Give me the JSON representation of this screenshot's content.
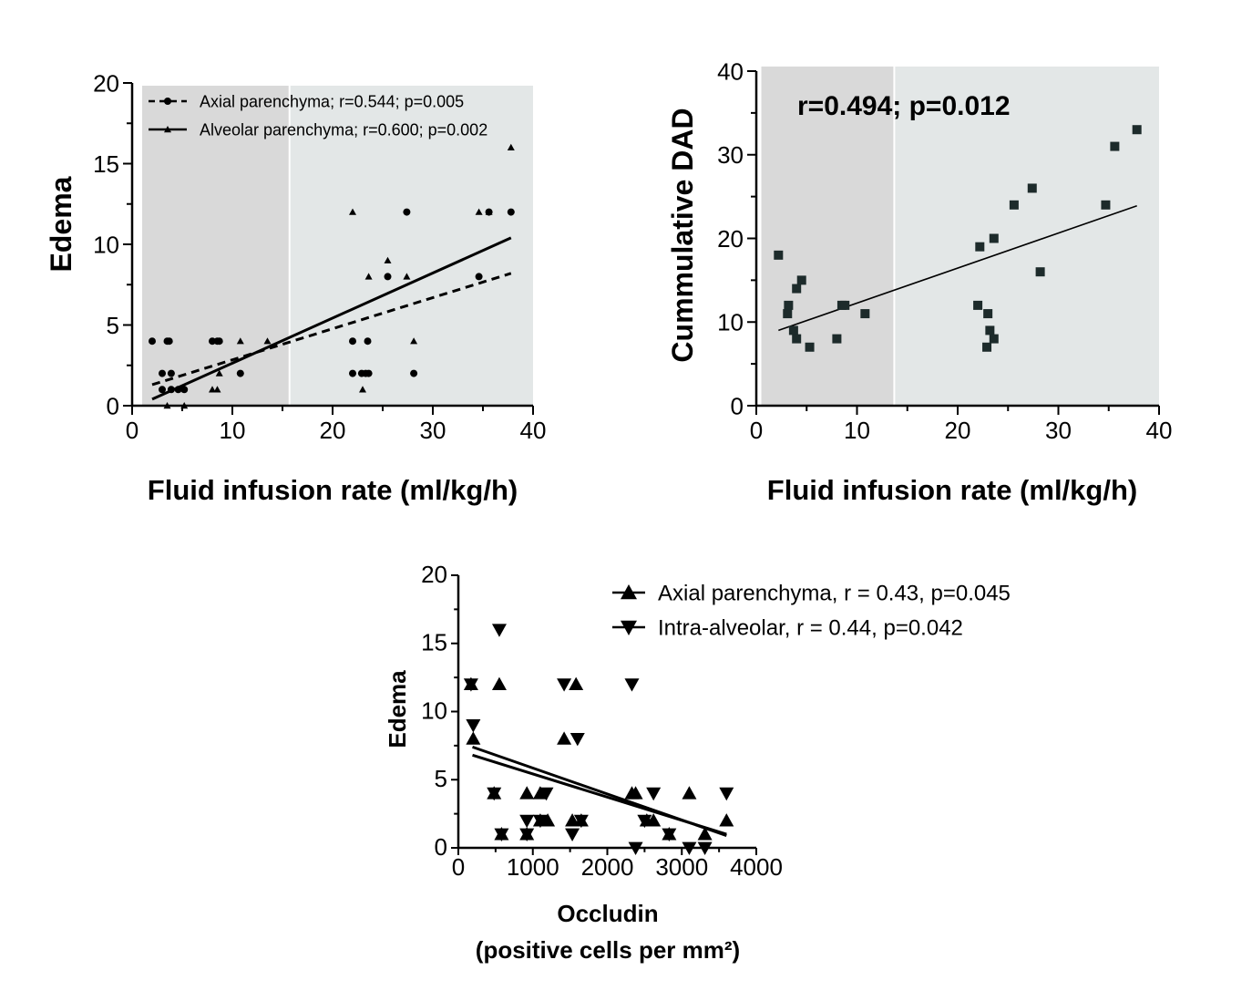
{
  "chart_data": [
    {
      "type": "scatter",
      "title": "",
      "xlabel": "Fluid infusion rate (ml/kg/h)",
      "ylabel": "Edema",
      "xlim": [
        0,
        40
      ],
      "ylim": [
        0,
        20
      ],
      "xticks": [
        "0",
        "10",
        "20",
        "30",
        "40"
      ],
      "yticks": [
        "0",
        "5",
        "10",
        "15",
        "20"
      ],
      "shaded_regions": [
        {
          "x": [
            1,
            15.7
          ],
          "color": "#d9d9d9"
        },
        {
          "x": [
            15.7,
            40
          ],
          "color": "#e3e7e7"
        }
      ],
      "legend": "top-left",
      "series": [
        {
          "name": "Axial parenchyma; r=0.544; p=0.005",
          "marker": "circle",
          "line": "dashed",
          "fit": [
            [
              2,
              1.3
            ],
            [
              37.8,
              8.2
            ]
          ],
          "points": [
            [
              2,
              4
            ],
            [
              3,
              2
            ],
            [
              3,
              1
            ],
            [
              3.5,
              4
            ],
            [
              3.7,
              4
            ],
            [
              3.9,
              2
            ],
            [
              3.9,
              1
            ],
            [
              4.6,
              1
            ],
            [
              5.2,
              1
            ],
            [
              8,
              4
            ],
            [
              8.5,
              4
            ],
            [
              8.7,
              4
            ],
            [
              10.8,
              2
            ],
            [
              22,
              4
            ],
            [
              22,
              2
            ],
            [
              22.9,
              2
            ],
            [
              23.3,
              2
            ],
            [
              23.5,
              4
            ],
            [
              23.6,
              2
            ],
            [
              25.5,
              8
            ],
            [
              27.4,
              12
            ],
            [
              28.1,
              2
            ],
            [
              34.6,
              8
            ],
            [
              35.6,
              12
            ],
            [
              37.8,
              12
            ]
          ]
        },
        {
          "name": "Alveolar parenchyma; r=0.600; p=0.002",
          "marker": "triangle",
          "line": "solid",
          "fit": [
            [
              2,
              0.4
            ],
            [
              37.8,
              10.4
            ]
          ],
          "points": [
            [
              3.5,
              0
            ],
            [
              5.2,
              0
            ],
            [
              8,
              1
            ],
            [
              8.5,
              1
            ],
            [
              8.7,
              2
            ],
            [
              10.8,
              4
            ],
            [
              13.5,
              4
            ],
            [
              22,
              12
            ],
            [
              23,
              1
            ],
            [
              23.6,
              8
            ],
            [
              25.5,
              9
            ],
            [
              27.4,
              8
            ],
            [
              28.1,
              4
            ],
            [
              34.6,
              12
            ],
            [
              35.6,
              12
            ],
            [
              37.8,
              16
            ]
          ]
        }
      ]
    },
    {
      "type": "scatter",
      "title": "",
      "annotation": "r=0.494; p=0.012",
      "xlabel": "Fluid infusion rate (ml/kg/h)",
      "ylabel": "Cummulative DAD",
      "xlim": [
        0,
        40
      ],
      "ylim": [
        0,
        40
      ],
      "xticks": [
        "0",
        "10",
        "20",
        "30",
        "40"
      ],
      "yticks": [
        "0",
        "10",
        "20",
        "30",
        "40"
      ],
      "shaded_regions": [
        {
          "x": [
            0.5,
            13.7
          ],
          "color": "#d9d9d9"
        },
        {
          "x": [
            13.7,
            40
          ],
          "color": "#e3e7e7"
        }
      ],
      "series": [
        {
          "marker": "square",
          "line": "solid",
          "fit": [
            [
              2.2,
              9
            ],
            [
              37.8,
              23.9
            ]
          ],
          "points": [
            [
              2.2,
              18
            ],
            [
              3.1,
              11
            ],
            [
              3.2,
              12
            ],
            [
              3.7,
              9
            ],
            [
              4,
              8
            ],
            [
              4,
              14
            ],
            [
              4.5,
              15
            ],
            [
              5.3,
              7
            ],
            [
              8,
              8
            ],
            [
              8.5,
              12
            ],
            [
              8.8,
              12
            ],
            [
              10.8,
              11
            ],
            [
              22,
              12
            ],
            [
              22.2,
              19
            ],
            [
              22.9,
              7
            ],
            [
              23,
              11
            ],
            [
              23.2,
              9
            ],
            [
              23.6,
              8
            ],
            [
              23.6,
              20
            ],
            [
              25.6,
              24
            ],
            [
              27.4,
              26
            ],
            [
              28.2,
              16
            ],
            [
              34.7,
              24
            ],
            [
              35.6,
              31
            ],
            [
              37.8,
              33
            ]
          ]
        }
      ]
    },
    {
      "type": "scatter",
      "title": "",
      "xlabel": "Occludin",
      "xlabel_line2": "(positive cells per mm²)",
      "ylabel": "Edema",
      "xlim": [
        0,
        4000
      ],
      "ylim": [
        0,
        20
      ],
      "xticks": [
        "0",
        "1000",
        "2000",
        "3000",
        "4000"
      ],
      "yticks": [
        "0",
        "5",
        "10",
        "15",
        "20"
      ],
      "legend": "top-right",
      "series": [
        {
          "name": "Axial parenchyma, r = 0.43, p=0.045",
          "marker": "triangle-up",
          "line": "solid",
          "fit": [
            [
              190,
              7.4
            ],
            [
              3600,
              0.9
            ]
          ],
          "points": [
            [
              170,
              12
            ],
            [
              200,
              8
            ],
            [
              480,
              4
            ],
            [
              580,
              1
            ],
            [
              550,
              12
            ],
            [
              920,
              4
            ],
            [
              920,
              1
            ],
            [
              1100,
              4
            ],
            [
              1100,
              2
            ],
            [
              1200,
              2
            ],
            [
              1420,
              8
            ],
            [
              1530,
              2
            ],
            [
              1580,
              12
            ],
            [
              1650,
              2
            ],
            [
              2330,
              4
            ],
            [
              2380,
              4
            ],
            [
              2530,
              2
            ],
            [
              2620,
              2
            ],
            [
              2830,
              1
            ],
            [
              3100,
              4
            ],
            [
              3310,
              1
            ],
            [
              3600,
              2
            ]
          ]
        },
        {
          "name": "Intra-alveolar, r = 0.44, p=0.042",
          "marker": "triangle-down",
          "line": "solid",
          "fit": [
            [
              190,
              6.8
            ],
            [
              3600,
              1
            ]
          ],
          "points": [
            [
              170,
              12
            ],
            [
              200,
              9
            ],
            [
              480,
              4
            ],
            [
              580,
              1
            ],
            [
              550,
              16
            ],
            [
              920,
              2
            ],
            [
              920,
              1
            ],
            [
              1100,
              2
            ],
            [
              1180,
              4
            ],
            [
              1420,
              12
            ],
            [
              1530,
              1
            ],
            [
              1600,
              8
            ],
            [
              1650,
              2
            ],
            [
              2330,
              12
            ],
            [
              2380,
              0
            ],
            [
              2500,
              2
            ],
            [
              2620,
              4
            ],
            [
              2830,
              1
            ],
            [
              3100,
              0
            ],
            [
              3310,
              0
            ],
            [
              3600,
              4
            ]
          ]
        }
      ]
    }
  ]
}
